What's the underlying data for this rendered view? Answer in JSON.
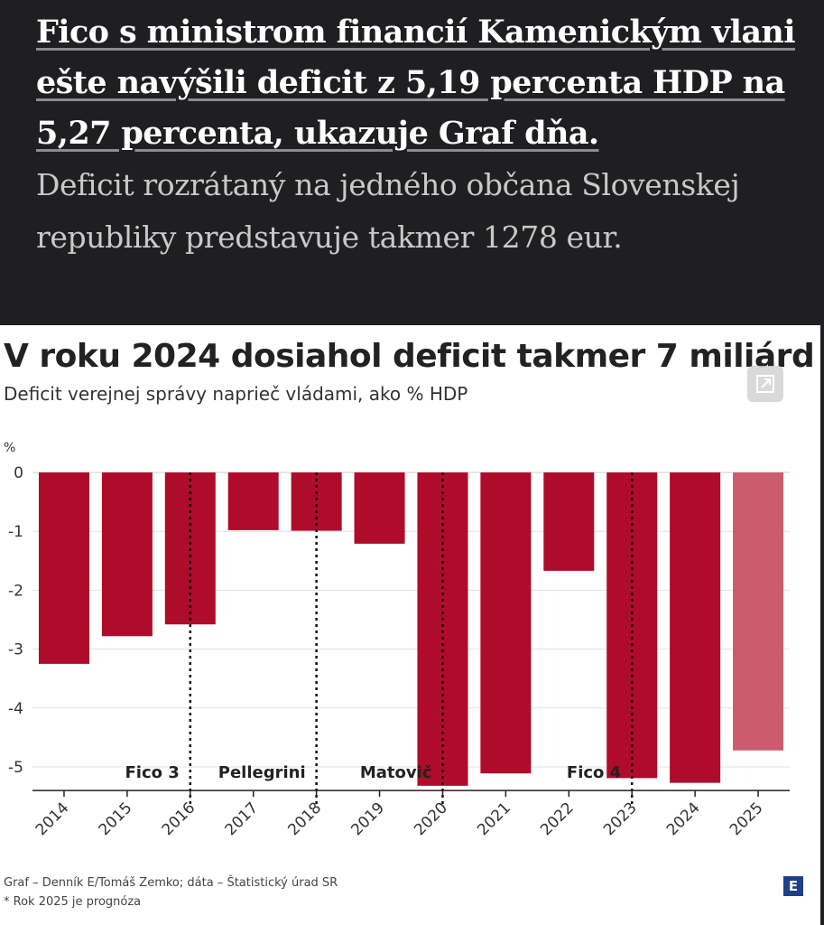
{
  "article": {
    "headline": "Fico s ministrom financií Kamenickým vlani ešte navýšili deficit z 5,19 percenta HDP na 5,27 percenta, ukazuje Graf dňa.",
    "subhead": "Deficit rozrátaný na jedného občana Slovenskej republiky predstavuje takmer 1278 eur."
  },
  "chart_data": {
    "type": "bar",
    "title": "V roku 2024 dosiahol deficit takmer 7 miliárd",
    "subtitle": "Deficit verejnej správy naprieč vládami, ako % HDP",
    "ylabel": "%",
    "ylim": [
      -5.4,
      0
    ],
    "yticks": [
      "0",
      "-1",
      "-2",
      "-3",
      "-4",
      "-5"
    ],
    "categories": [
      "2014",
      "2015",
      "2016",
      "2017",
      "2018",
      "2019",
      "2020",
      "2021",
      "2022",
      "2023",
      "2024",
      "2025"
    ],
    "values": [
      -3.25,
      -2.78,
      -2.58,
      -0.98,
      -0.99,
      -1.21,
      -5.32,
      -5.11,
      -1.67,
      -5.19,
      -5.27,
      -4.72
    ],
    "forecast": [
      false,
      false,
      false,
      false,
      false,
      false,
      false,
      false,
      false,
      false,
      false,
      true
    ],
    "bar_color": "#ae0c2a",
    "forecast_color": "#cc5c6d",
    "governments": [
      {
        "label": "Fico 3",
        "start_year": "2016"
      },
      {
        "label": "Pellegrini",
        "start_year": "2018"
      },
      {
        "label": "Matovič",
        "start_year": "2020"
      },
      {
        "label": "Fico 4",
        "start_year": "2023"
      }
    ],
    "grid": true
  },
  "footer": {
    "credit": "Graf – Denník E/Tomáš Zemko; dáta – Štatistický úrad SR",
    "note": "* Rok 2025 je prognóza",
    "logo_text": "E"
  }
}
